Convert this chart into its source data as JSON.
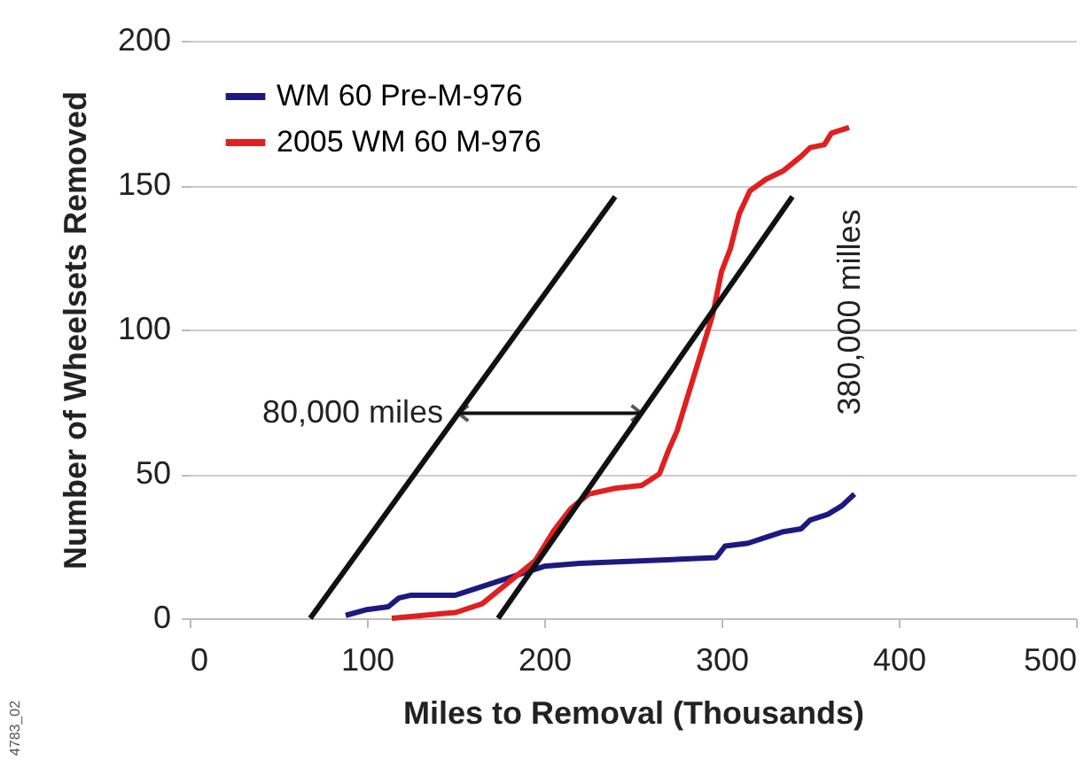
{
  "chart_data": {
    "type": "line",
    "xlabel": "Miles to Removal (Thousands)",
    "ylabel": "Number of Wheelsets Removed",
    "xlim": [
      0,
      500
    ],
    "xticks": [
      0,
      100,
      200,
      300,
      400,
      500
    ],
    "ylim": [
      0,
      200
    ],
    "yticks": [
      0,
      50,
      100,
      150,
      200
    ],
    "grid": "y",
    "legend": "top left",
    "line_style": "solid",
    "series": [
      {
        "name": "WM 60 Pre-M-976",
        "color": "#1c1a80",
        "x": [
          88,
          100,
          112,
          118,
          125,
          150,
          160,
          175,
          190,
          200,
          220,
          260,
          297,
          302,
          315,
          325,
          335,
          345,
          350,
          360,
          368,
          375
        ],
        "values": [
          1,
          3,
          4,
          7,
          8,
          8,
          10,
          13,
          16,
          18,
          19,
          20,
          21,
          25,
          26,
          28,
          30,
          31,
          34,
          36,
          39,
          43
        ]
      },
      {
        "name": "2005 WM 60 M-976",
        "color": "#e02020",
        "x": [
          114,
          150,
          165,
          175,
          185,
          195,
          205,
          215,
          225,
          240,
          255,
          265,
          270,
          275,
          280,
          285,
          290,
          295,
          300,
          305,
          310,
          316,
          325,
          335,
          345,
          350,
          358,
          362,
          372
        ],
        "values": [
          0,
          2,
          5,
          10,
          15,
          20,
          30,
          38,
          43,
          45,
          46,
          50,
          58,
          65,
          75,
          85,
          95,
          105,
          120,
          128,
          140,
          148,
          152,
          155,
          160,
          163,
          164,
          168,
          170
        ]
      },
      {
        "color": "#111111",
        "x": [
          68,
          240
        ],
        "values": [
          0,
          146
        ]
      },
      {
        "color": "#111111",
        "x": [
          174,
          340
        ],
        "values": [
          0,
          146
        ]
      }
    ],
    "annotations": [
      {
        "text": "80,000 miles",
        "x": 151,
        "y": 71
      },
      "380,000 milles",
      "4783_02"
    ]
  }
}
